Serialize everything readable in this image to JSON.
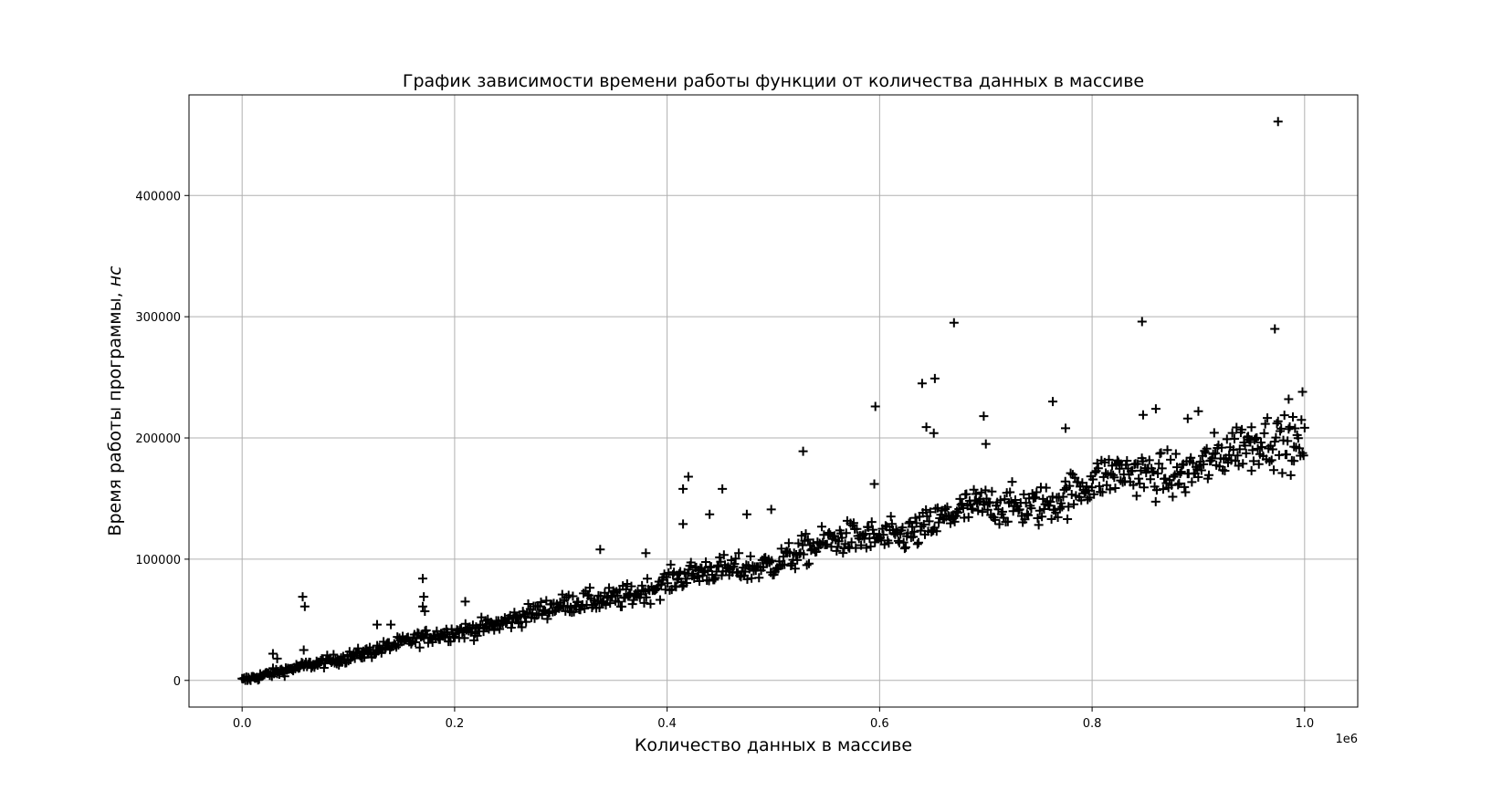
{
  "chart_data": {
    "type": "scatter",
    "title": "График зависимости времени работы функции от количества данных в массиве",
    "xlabel": "Количество данных в массиве",
    "ylabel_main": "Время работы программы, ",
    "ylabel_unit": "нс",
    "x_offset_text": "1e6",
    "xlim": [
      -0.05,
      1.05
    ],
    "ylim": [
      -22000,
      483000
    ],
    "xticks": [
      0.0,
      0.2,
      0.4,
      0.6,
      0.8,
      1.0
    ],
    "xtick_labels": [
      "0.0",
      "0.2",
      "0.4",
      "0.6",
      "0.8",
      "1.0"
    ],
    "yticks": [
      0,
      100000,
      200000,
      300000,
      400000
    ],
    "ytick_labels": [
      "0",
      "100000",
      "200000",
      "300000",
      "400000"
    ],
    "grid": true,
    "marker": "+",
    "marker_color": "#000000",
    "series": [
      {
        "trend": {
          "x_start": 0.0,
          "x_end": 1.0,
          "y_start": 0,
          "y_end": 200000,
          "count": 1000
        },
        "points": [
          [
            0.029,
            22000
          ],
          [
            0.033,
            18000
          ],
          [
            0.057,
            69000
          ],
          [
            0.059,
            61000
          ],
          [
            0.058,
            25000
          ],
          [
            0.127,
            46000
          ],
          [
            0.14,
            46000
          ],
          [
            0.17,
            84000
          ],
          [
            0.171,
            69000
          ],
          [
            0.17,
            61000
          ],
          [
            0.172,
            57000
          ],
          [
            0.21,
            65000
          ],
          [
            0.337,
            108000
          ],
          [
            0.38,
            105000
          ],
          [
            0.415,
            158000
          ],
          [
            0.42,
            168000
          ],
          [
            0.415,
            129000
          ],
          [
            0.44,
            137000
          ],
          [
            0.452,
            158000
          ],
          [
            0.475,
            137000
          ],
          [
            0.498,
            141000
          ],
          [
            0.528,
            189000
          ],
          [
            0.596,
            226000
          ],
          [
            0.595,
            162000
          ],
          [
            0.64,
            245000
          ],
          [
            0.652,
            249000
          ],
          [
            0.644,
            209000
          ],
          [
            0.651,
            204000
          ],
          [
            0.67,
            295000
          ],
          [
            0.698,
            218000
          ],
          [
            0.7,
            195000
          ],
          [
            0.763,
            230000
          ],
          [
            0.775,
            208000
          ],
          [
            0.847,
            296000
          ],
          [
            0.848,
            219000
          ],
          [
            0.86,
            224000
          ],
          [
            0.89,
            216000
          ],
          [
            0.9,
            222000
          ],
          [
            0.972,
            290000
          ],
          [
            0.975,
            461000
          ],
          [
            0.985,
            232000
          ],
          [
            0.998,
            238000
          ],
          [
            0.99,
            181000
          ],
          [
            0.95,
            173000
          ]
        ]
      }
    ]
  }
}
